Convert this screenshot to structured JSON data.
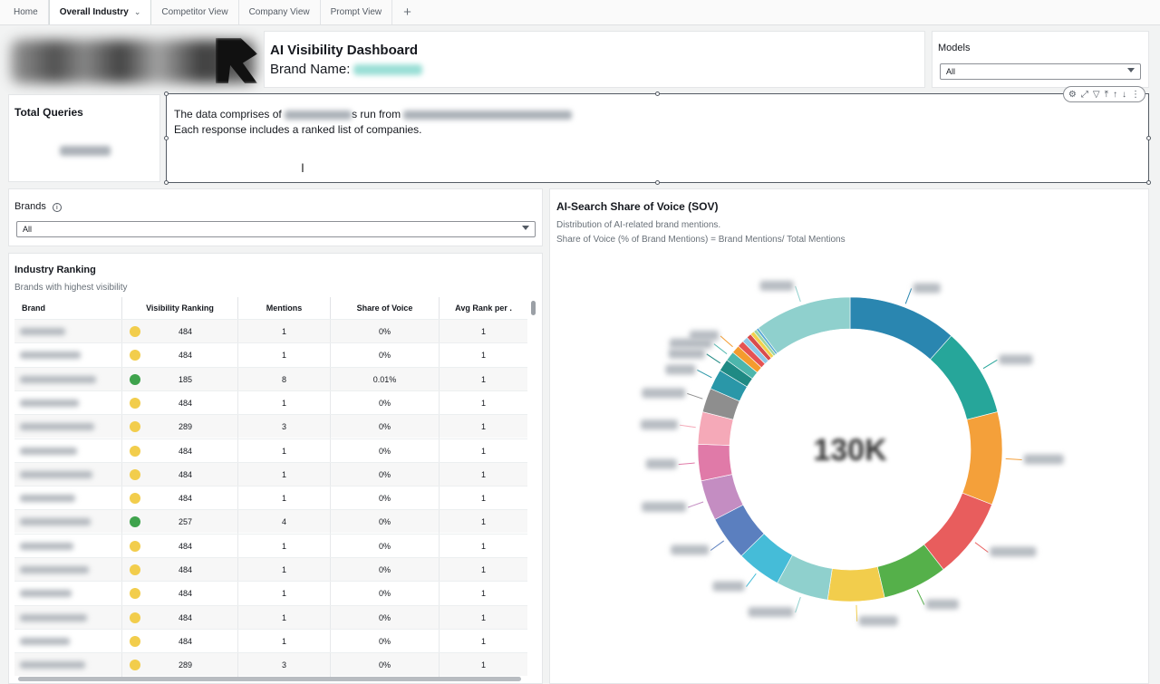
{
  "tabs": [
    {
      "label": "Home",
      "active": false
    },
    {
      "label": "Overall Industry",
      "active": true
    },
    {
      "label": "Competitor View",
      "active": false
    },
    {
      "label": "Company View",
      "active": false
    },
    {
      "label": "Prompt View",
      "active": false
    }
  ],
  "header": {
    "title": "AI Visibility Dashboard",
    "brand_label": "Brand Name:"
  },
  "models": {
    "label": "Models",
    "value": "All"
  },
  "total_queries": {
    "label": "Total Queries"
  },
  "description": {
    "line1_start": "The data comprises of",
    "line1_mid": "s run from",
    "line2": "Each response includes a ranked list of companies."
  },
  "brands_filter": {
    "label": "Brands",
    "value": "All",
    "info_icon": "info-icon"
  },
  "ranking": {
    "title": "Industry Ranking",
    "subtitle": "Brands with highest visibility",
    "columns": [
      "Brand",
      "Visibility Ranking",
      "Mentions",
      "Share of Voice",
      "Avg Rank per ."
    ],
    "rows": [
      {
        "status": "yellow",
        "rank": "484",
        "mentions": "1",
        "sov": "0%",
        "avg": "1"
      },
      {
        "status": "yellow",
        "rank": "484",
        "mentions": "1",
        "sov": "0%",
        "avg": "1"
      },
      {
        "status": "green",
        "rank": "185",
        "mentions": "8",
        "sov": "0.01%",
        "avg": "1"
      },
      {
        "status": "yellow",
        "rank": "484",
        "mentions": "1",
        "sov": "0%",
        "avg": "1"
      },
      {
        "status": "yellow",
        "rank": "289",
        "mentions": "3",
        "sov": "0%",
        "avg": "1"
      },
      {
        "status": "yellow",
        "rank": "484",
        "mentions": "1",
        "sov": "0%",
        "avg": "1"
      },
      {
        "status": "yellow",
        "rank": "484",
        "mentions": "1",
        "sov": "0%",
        "avg": "1"
      },
      {
        "status": "yellow",
        "rank": "484",
        "mentions": "1",
        "sov": "0%",
        "avg": "1"
      },
      {
        "status": "green",
        "rank": "257",
        "mentions": "4",
        "sov": "0%",
        "avg": "1"
      },
      {
        "status": "yellow",
        "rank": "484",
        "mentions": "1",
        "sov": "0%",
        "avg": "1"
      },
      {
        "status": "yellow",
        "rank": "484",
        "mentions": "1",
        "sov": "0%",
        "avg": "1"
      },
      {
        "status": "yellow",
        "rank": "484",
        "mentions": "1",
        "sov": "0%",
        "avg": "1"
      },
      {
        "status": "yellow",
        "rank": "484",
        "mentions": "1",
        "sov": "0%",
        "avg": "1"
      },
      {
        "status": "yellow",
        "rank": "484",
        "mentions": "1",
        "sov": "0%",
        "avg": "1"
      },
      {
        "status": "yellow",
        "rank": "289",
        "mentions": "3",
        "sov": "0%",
        "avg": "1"
      }
    ]
  },
  "sov": {
    "title": "AI-Search Share of Voice (SOV)",
    "line1": "Distribution of AI-related brand mentions.",
    "line2": "Share of Voice (% of Brand Mentions) = Brand Mentions/ Total Mentions",
    "center_value": "130K"
  },
  "colors": {
    "status_yellow": "#f2cd4c",
    "status_green": "#3fa34d"
  },
  "chart_data": {
    "type": "pie",
    "values": [
      13.5,
      11,
      11.5,
      10,
      8,
      7,
      6.5,
      5.5,
      5.5,
      5,
      4.5,
      4,
      3,
      2.5,
      1.5,
      1.2,
      1,
      0.8,
      0.7,
      0.6,
      0.5,
      0.4,
      0.3,
      12
    ],
    "colors": [
      "#2a86b0",
      "#26a69a",
      "#f4a03a",
      "#e85d5d",
      "#55b04a",
      "#f2cd4c",
      "#8fd0cd",
      "#45bcd8",
      "#5b7fbf",
      "#c48dc2",
      "#e07aa8",
      "#f5a9b8",
      "#8e8e8e",
      "#2a97a8",
      "#1f8a84",
      "#4db6ac",
      "#f49b2e",
      "#e55353",
      "#8ec9e8",
      "#d94c4c",
      "#f2d14c",
      "#9bd4a3",
      "#5aa9d6",
      "#8fd0cd"
    ],
    "center_label": "130K"
  }
}
